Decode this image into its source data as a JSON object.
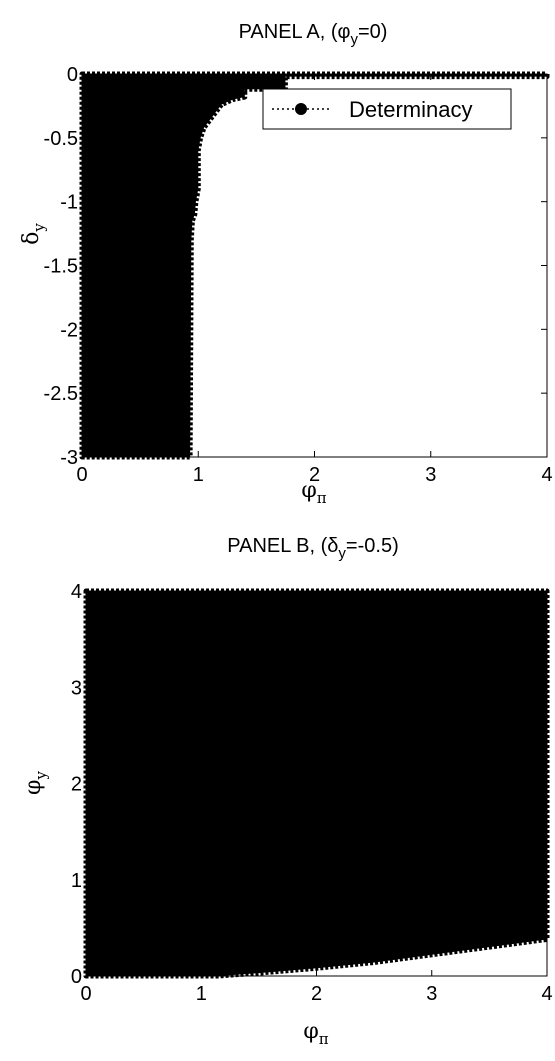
{
  "chart_data": [
    {
      "type": "scatter",
      "title_prefix": "PANEL A, (",
      "title_symbol": "φ",
      "title_sub": "y",
      "title_suffix": "=0)",
      "xlabel_symbol": "φ",
      "xlabel_sub": "π",
      "ylabel_symbol": "δ",
      "ylabel_sub": "y",
      "xlim": [
        0,
        4
      ],
      "ylim": [
        -3,
        0
      ],
      "xticks": [
        0,
        1,
        2,
        3,
        4
      ],
      "yticks": [
        0,
        -0.5,
        -1,
        -1.5,
        -2,
        -2.5,
        -3
      ],
      "xtick_labels": [
        "0",
        "1",
        "2",
        "3",
        "4"
      ],
      "ytick_labels": [
        "0",
        "-0.5",
        "-1",
        "-1.5",
        "-2",
        "-2.5",
        "-3"
      ],
      "legend": {
        "label": "Determinacy",
        "placement": "top-right"
      },
      "grid": false,
      "series": [
        {
          "name": "Determinacy",
          "marker": "filled-circle",
          "color": "#000000",
          "region_boundary": [
            [
              0,
              0
            ],
            [
              4,
              0
            ],
            [
              4,
              -0.02
            ],
            [
              1.75,
              -0.02
            ],
            [
              1.75,
              -0.12
            ],
            [
              1.4,
              -0.12
            ],
            [
              1.4,
              -0.18
            ],
            [
              1.3,
              -0.2
            ],
            [
              1.2,
              -0.24
            ],
            [
              1.15,
              -0.3
            ],
            [
              1.1,
              -0.36
            ],
            [
              1.05,
              -0.42
            ],
            [
              1.02,
              -0.5
            ],
            [
              1.0,
              -0.6
            ],
            [
              1.0,
              -0.9
            ],
            [
              0.98,
              -1.0
            ],
            [
              0.97,
              -1.1
            ],
            [
              0.95,
              -1.15
            ],
            [
              0.94,
              -1.3
            ],
            [
              0.93,
              -3
            ],
            [
              0,
              -3
            ]
          ]
        }
      ]
    },
    {
      "type": "scatter",
      "title_prefix": "PANEL B, (",
      "title_symbol": "δ",
      "title_sub": "y",
      "title_suffix": "=-0.5)",
      "xlabel_symbol": "φ",
      "xlabel_sub": "π",
      "ylabel_symbol": "φ",
      "ylabel_sub": "y",
      "xlim": [
        0,
        4
      ],
      "ylim": [
        0,
        4
      ],
      "xticks": [
        0,
        1,
        2,
        3,
        4
      ],
      "yticks": [
        0,
        1,
        2,
        3,
        4
      ],
      "xtick_labels": [
        "0",
        "1",
        "2",
        "3",
        "4"
      ],
      "ytick_labels": [
        "0",
        "1",
        "2",
        "3",
        "4"
      ],
      "grid": false,
      "series": [
        {
          "name": "Determinacy",
          "marker": "filled-circle",
          "color": "#000000",
          "region_boundary": [
            [
              0,
              4
            ],
            [
              4,
              4
            ],
            [
              4,
              0.38
            ],
            [
              3.5,
              0.3
            ],
            [
              3.0,
              0.22
            ],
            [
              2.5,
              0.14
            ],
            [
              2.0,
              0.08
            ],
            [
              1.5,
              0.03
            ],
            [
              1.15,
              0.0
            ],
            [
              0,
              0
            ]
          ]
        }
      ]
    }
  ]
}
